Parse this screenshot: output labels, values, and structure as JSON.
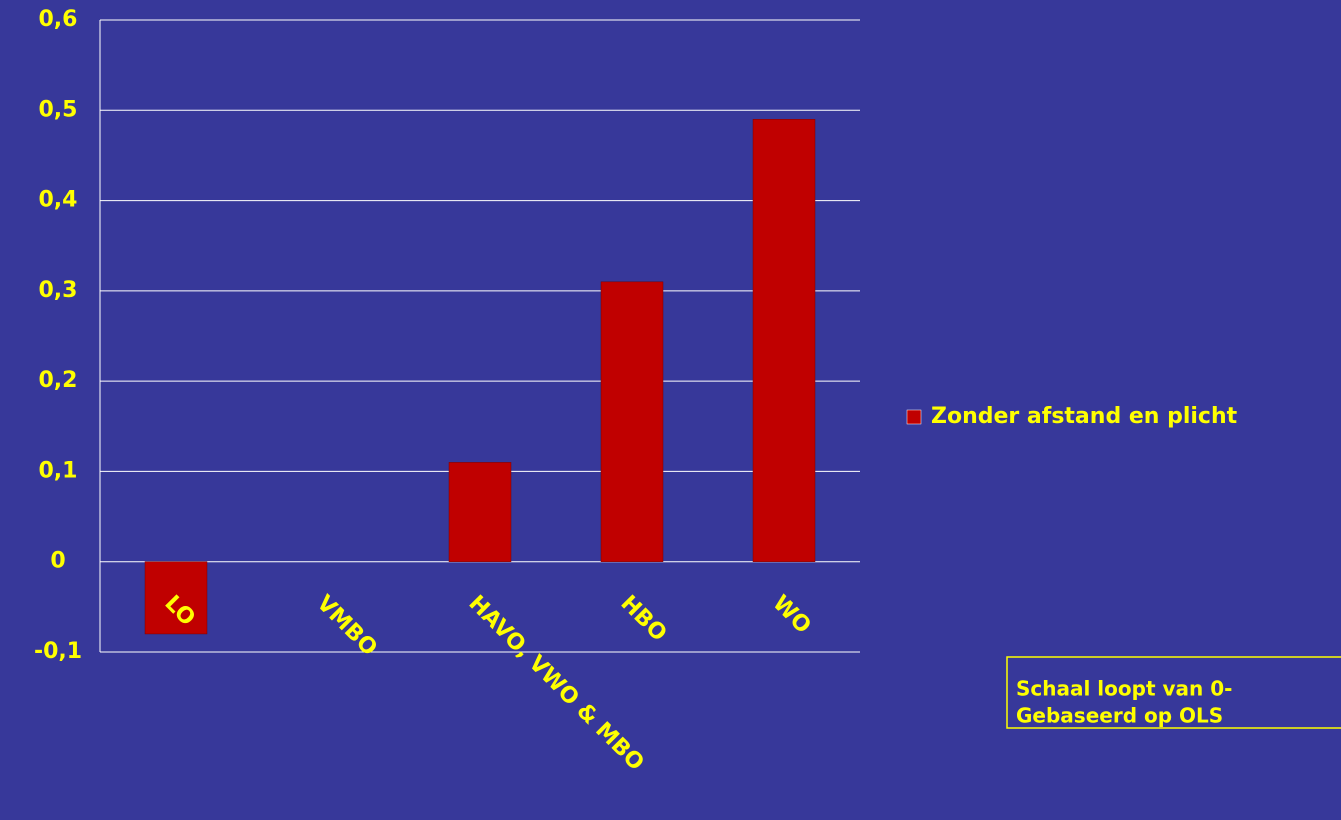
{
  "chart_data": {
    "type": "bar",
    "categories": [
      "LO",
      "VMBO",
      "HAVO, VWO & MBO",
      "HBO",
      "WO"
    ],
    "series": [
      {
        "name": "Zonder afstand en plicht",
        "color": "#c00000",
        "values": [
          -0.08,
          0,
          0.11,
          0.31,
          0.49
        ]
      }
    ],
    "ylim": [
      -0.1,
      0.6
    ],
    "yticks": [
      {
        "value": -0.1,
        "label": "-0,1"
      },
      0,
      {
        "value": 0.1,
        "label": "0,1"
      },
      {
        "value": 0.2,
        "label": "0,2"
      },
      {
        "value": 0.3,
        "label": "0,3"
      },
      {
        "value": 0.4,
        "label": "0,4"
      },
      {
        "value": 0.5,
        "label": "0,5"
      },
      {
        "value": 0.6,
        "label": "0,6"
      }
    ],
    "grid": true,
    "legend": "right",
    "annotations": [
      "Schaal loopt van 0-",
      "Gebaseerd op OLS"
    ]
  }
}
